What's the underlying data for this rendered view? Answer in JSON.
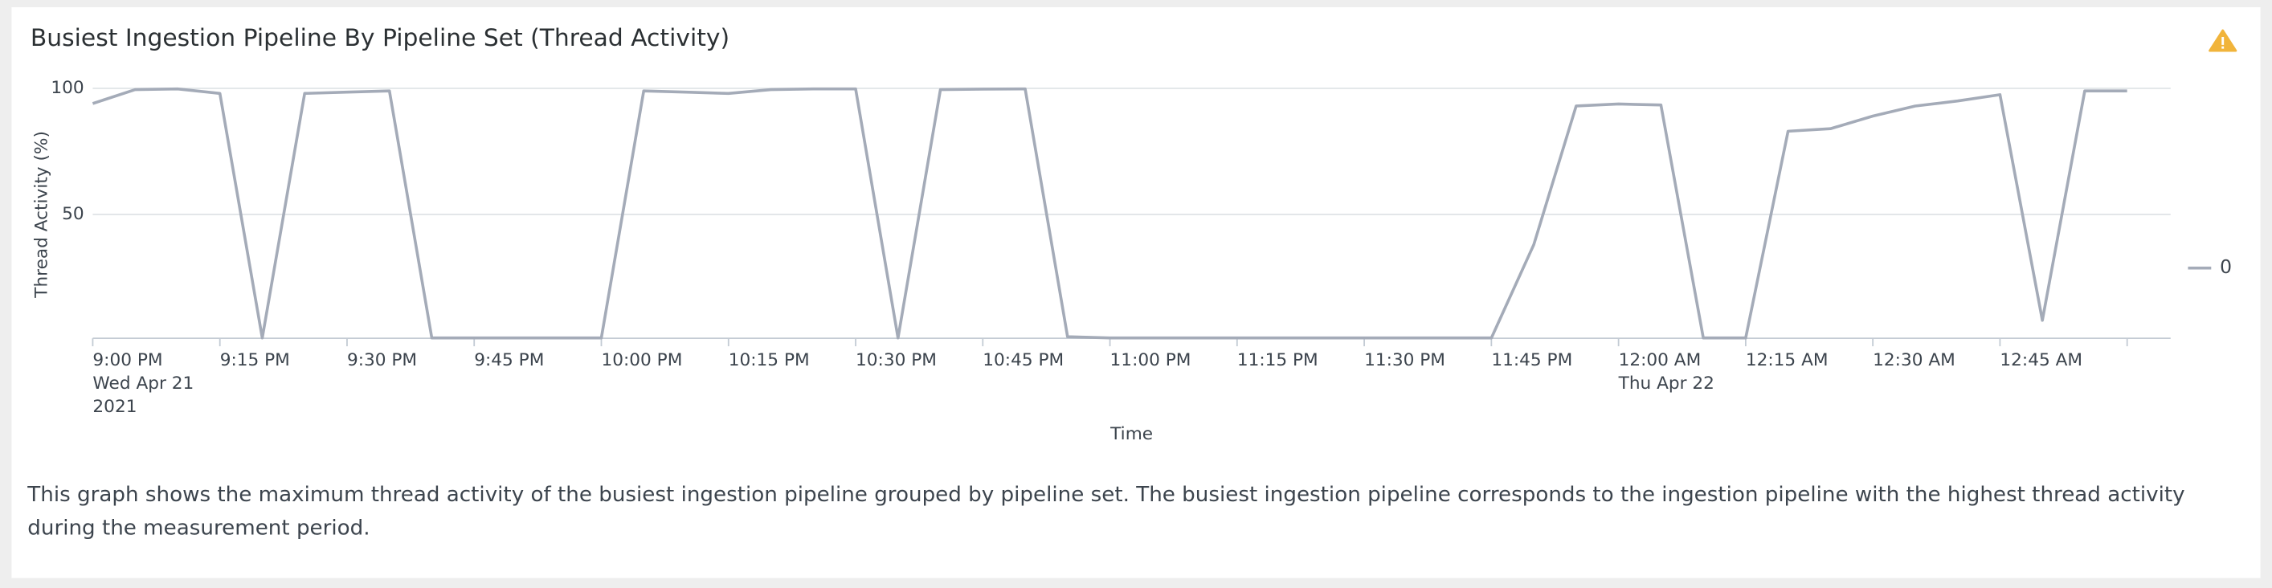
{
  "chart_data": {
    "type": "line",
    "title": "Busiest Ingestion Pipeline By Pipeline Set (Thread Activity)",
    "x_label": "Time",
    "y_label": "Thread Activity (%)",
    "description": "This graph shows the maximum thread activity of the busiest ingestion pipeline grouped by pipeline set. The busiest ingestion pipeline corresponds to the ingestion pipeline with the highest thread activity during the measurement period.",
    "x": [
      0,
      5,
      10,
      15,
      20,
      25,
      30,
      35,
      40,
      45,
      50,
      55,
      60,
      65,
      70,
      75,
      80,
      85,
      90,
      95,
      100,
      105,
      110,
      115,
      120,
      125,
      130,
      135,
      140,
      145,
      150,
      155,
      160,
      165,
      170,
      175,
      180,
      185,
      190,
      195,
      200,
      205,
      210,
      215,
      220,
      225,
      230,
      235,
      240
    ],
    "series": [
      {
        "name": "0",
        "color": "#a4abb8",
        "values": [
          94,
          99.5,
          99.8,
          98,
          1,
          98,
          98.5,
          99,
          1,
          1,
          1,
          1,
          1,
          99,
          98.5,
          98,
          99.5,
          99.8,
          99.8,
          1,
          99.5,
          99.7,
          99.8,
          1.5,
          1,
          1,
          1,
          1,
          1,
          1,
          1,
          1,
          1,
          1,
          38,
          93,
          93.8,
          93.4,
          1,
          1,
          83,
          84,
          89,
          93,
          95,
          97.5,
          8,
          99,
          99
        ]
      }
    ],
    "xlim": [
      0,
      240
    ],
    "xticks": [
      {
        "value": 0,
        "label": "9:00 PM",
        "date": "Wed Apr 21",
        "year": "2021"
      },
      {
        "value": 15,
        "label": "9:15 PM"
      },
      {
        "value": 30,
        "label": "9:30 PM"
      },
      {
        "value": 45,
        "label": "9:45 PM"
      },
      {
        "value": 60,
        "label": "10:00 PM"
      },
      {
        "value": 75,
        "label": "10:15 PM"
      },
      {
        "value": 90,
        "label": "10:30 PM"
      },
      {
        "value": 105,
        "label": "10:45 PM"
      },
      {
        "value": 120,
        "label": "11:00 PM"
      },
      {
        "value": 135,
        "label": "11:15 PM"
      },
      {
        "value": 150,
        "label": "11:30 PM"
      },
      {
        "value": 165,
        "label": "11:45 PM"
      },
      {
        "value": 180,
        "label": "12:00 AM",
        "date": "Thu Apr 22"
      },
      {
        "value": 195,
        "label": "12:15 AM"
      },
      {
        "value": 210,
        "label": "12:30 AM"
      },
      {
        "value": 225,
        "label": "12:45 AM"
      },
      {
        "value": 240,
        "label": null
      }
    ],
    "ylim": [
      0,
      100
    ],
    "yticks": [
      50,
      100
    ],
    "grid": true,
    "legend": "right"
  }
}
